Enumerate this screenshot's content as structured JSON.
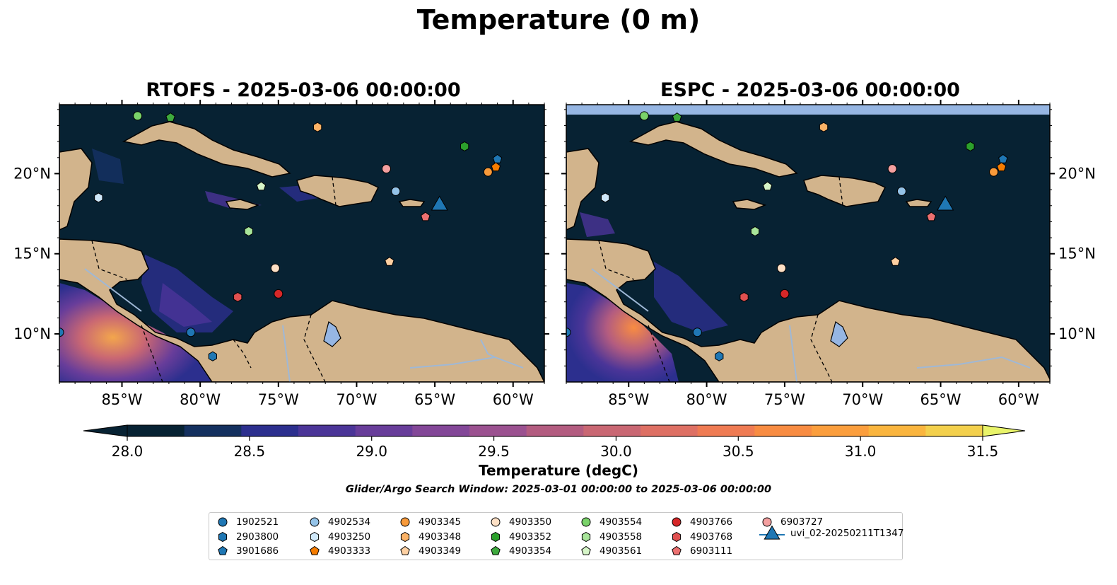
{
  "figure": {
    "title": "Temperature (0 m)",
    "panels": [
      {
        "id": "rtofs",
        "title": "RTOFS - 2025-03-06 00:00:00"
      },
      {
        "id": "espc",
        "title": "ESPC - 2025-03-06 00:00:00"
      }
    ],
    "lon_ticks": [
      "85°W",
      "80°W",
      "75°W",
      "70°W",
      "65°W",
      "60°W"
    ],
    "lat_ticks": [
      "20°N",
      "15°N",
      "10°N"
    ],
    "colorbar": {
      "label": "Temperature (degC)",
      "ticks": [
        "28.0",
        "28.5",
        "29.0",
        "29.5",
        "30.0",
        "30.5",
        "31.0",
        "31.5"
      ],
      "colors": [
        "#072233",
        "#14305f",
        "#2c2f8e",
        "#4b3598",
        "#683d9a",
        "#834798",
        "#9b5190",
        "#b35c80",
        "#c96773",
        "#de7064",
        "#ef7b53",
        "#f88c42",
        "#fb9e3d",
        "#fab53e",
        "#f3d04c"
      ],
      "under_color": "#072233",
      "over_color": "#e9f46a"
    },
    "subtitle": "Glider/Argo Search Window: 2025-03-01 00:00:00 to 2025-03-06 00:00:00",
    "colors": {
      "ocean": "#072233",
      "land": "#d2b48c",
      "lakes": "#96b6e3",
      "rivers": "#9fb8d6"
    }
  },
  "legend": [
    {
      "label": "1902521",
      "marker": "circle",
      "color": "#1f77b4"
    },
    {
      "label": "2903800",
      "marker": "hexagon",
      "color": "#1f77b4"
    },
    {
      "label": "3901686",
      "marker": "pentagon",
      "color": "#1f77b4"
    },
    {
      "label": "4902534",
      "marker": "circle",
      "color": "#94c3e8"
    },
    {
      "label": "4903250",
      "marker": "hexagon",
      "color": "#cfe8fa"
    },
    {
      "label": "4903333",
      "marker": "pentagon",
      "color": "#f57c00"
    },
    {
      "label": "4903345",
      "marker": "circle",
      "color": "#f89a3a"
    },
    {
      "label": "4903348",
      "marker": "hexagon",
      "color": "#fbb266"
    },
    {
      "label": "4903349",
      "marker": "pentagon",
      "color": "#fdd0a2"
    },
    {
      "label": "4903350",
      "marker": "circle",
      "color": "#fde0c5"
    },
    {
      "label": "4903352",
      "marker": "hexagon",
      "color": "#2ca02c"
    },
    {
      "label": "4903354",
      "marker": "pentagon",
      "color": "#3eaa3e"
    },
    {
      "label": "4903554",
      "marker": "circle",
      "color": "#7ad36a"
    },
    {
      "label": "4903558",
      "marker": "hexagon",
      "color": "#a8e59a"
    },
    {
      "label": "4903561",
      "marker": "pentagon",
      "color": "#d6f5c8"
    },
    {
      "label": "4903766",
      "marker": "circle",
      "color": "#d62728"
    },
    {
      "label": "4903768",
      "marker": "hexagon",
      "color": "#e05050"
    },
    {
      "label": "6903111",
      "marker": "pentagon",
      "color": "#ec7070"
    },
    {
      "label": "6903727",
      "marker": "circle",
      "color": "#f4a0a0"
    },
    {
      "label": "uvi_02-20250211T1347",
      "marker": "triangle",
      "color": "#1f77b4"
    }
  ],
  "map_data": {
    "lon_range": [
      -89,
      -58
    ],
    "lat_range": [
      7,
      24.3
    ],
    "floats": [
      {
        "id": "1902521",
        "lon": -89,
        "lat": 10.1
      },
      {
        "id": "1902521",
        "lon": -80.6,
        "lat": 10.1
      },
      {
        "id": "2903800",
        "lon": -79.2,
        "lat": 8.6
      },
      {
        "id": "3901686",
        "lon": -61,
        "lat": 20.9
      },
      {
        "id": "4902534",
        "lon": -67.5,
        "lat": 18.9
      },
      {
        "id": "4903250",
        "lon": -86.5,
        "lat": 18.5
      },
      {
        "id": "4903333",
        "lon": -61.1,
        "lat": 20.4
      },
      {
        "id": "4903345",
        "lon": -61.6,
        "lat": 20.1
      },
      {
        "id": "4903348",
        "lon": -72.5,
        "lat": 22.9
      },
      {
        "id": "4903349",
        "lon": -67.9,
        "lat": 14.5
      },
      {
        "id": "4903350",
        "lon": -75.2,
        "lat": 14.1
      },
      {
        "id": "4903352",
        "lon": -63.1,
        "lat": 21.7
      },
      {
        "id": "4903354",
        "lon": -81.9,
        "lat": 23.5
      },
      {
        "id": "4903554",
        "lon": -84.0,
        "lat": 23.6
      },
      {
        "id": "4903558",
        "lon": -76.9,
        "lat": 16.4
      },
      {
        "id": "4903561",
        "lon": -76.1,
        "lat": 19.2
      },
      {
        "id": "4903766",
        "lon": -75.0,
        "lat": 12.5
      },
      {
        "id": "4903768",
        "lon": -77.6,
        "lat": 12.3
      },
      {
        "id": "6903111",
        "lon": -65.6,
        "lat": 17.3
      },
      {
        "id": "6903727",
        "lon": -68.1,
        "lat": 20.3
      },
      {
        "id": "uvi_02-20250211T1347",
        "lon": -64.7,
        "lat": 18.1
      }
    ]
  }
}
